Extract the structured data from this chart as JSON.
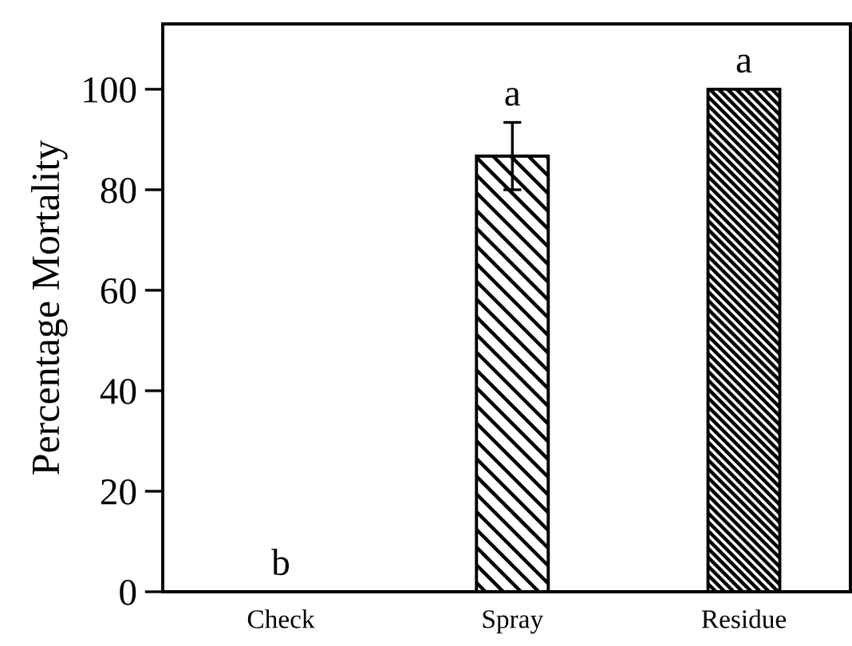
{
  "chart_data": {
    "type": "bar",
    "ylabel": "Percentage Mortality",
    "categories": [
      "Check",
      "Spray",
      "Residue"
    ],
    "values": [
      0,
      86.7,
      100
    ],
    "errors": [
      null,
      6.7,
      null
    ],
    "ylim": [
      0,
      113
    ],
    "yticks": [
      0,
      20,
      40,
      60,
      80,
      100
    ],
    "grid": false,
    "legend": false,
    "annotations": [
      {
        "text": "b",
        "x": "Check",
        "y": 0
      },
      {
        "text": "a",
        "x": "Spray",
        "y": 93.4
      },
      {
        "text": "a",
        "x": "Residue",
        "y": 100
      }
    ]
  }
}
